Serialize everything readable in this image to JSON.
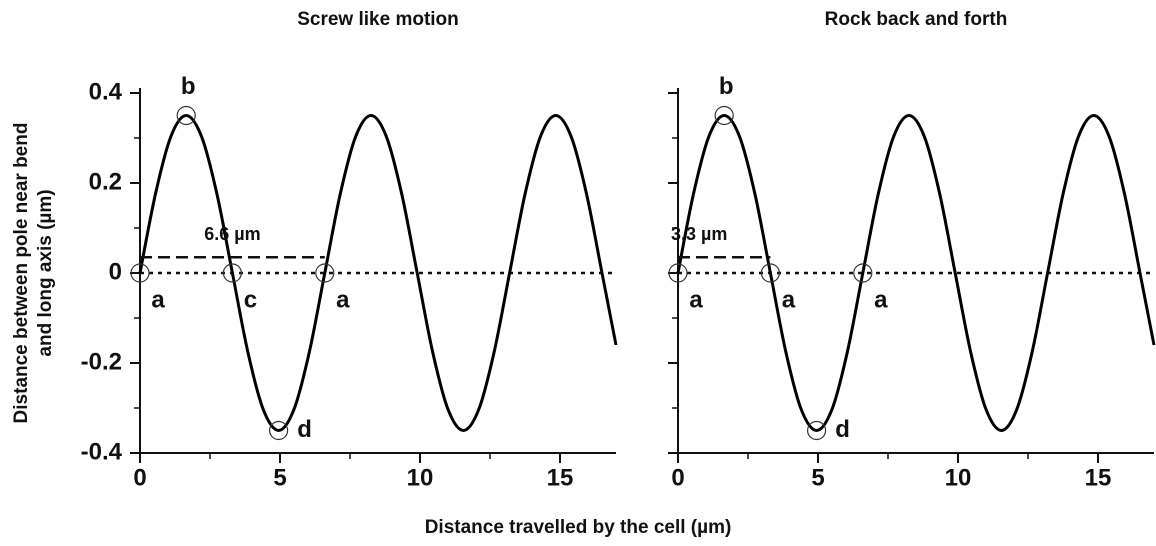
{
  "chart_data": [
    {
      "type": "line",
      "title": "Screw like motion",
      "ylabel": [
        "Distance between pole near bend",
        "and long axis (µm)"
      ],
      "xlabel": "Distance travelled by the cell (µm)",
      "x": [
        0,
        0.55,
        1.1,
        1.65,
        2.2,
        2.75,
        3.3,
        3.85,
        4.4,
        4.95,
        5.5,
        6.05,
        6.6,
        7.15,
        7.7,
        8.25,
        8.8,
        9.35,
        9.9,
        10.45,
        11,
        11.55,
        12.1,
        12.65,
        13.2,
        13.75,
        14.3,
        14.85,
        15.4,
        15.95,
        16.5,
        17
      ],
      "series": [
        {
          "color": "#000000",
          "values": [
            0,
            0.175,
            0.303,
            0.35,
            0.303,
            0.175,
            0,
            -0.175,
            -0.303,
            -0.35,
            -0.303,
            -0.175,
            0,
            0.175,
            0.303,
            0.35,
            0.303,
            0.175,
            0,
            -0.175,
            -0.303,
            -0.35,
            -0.303,
            -0.175,
            0,
            0.175,
            0.303,
            0.35,
            0.303,
            0.175,
            0,
            -0.16
          ]
        }
      ],
      "xlim": [
        0,
        17
      ],
      "ylim": [
        -0.4,
        0.4
      ],
      "xticks": [
        0,
        5,
        10,
        15
      ],
      "xminorticks": [
        2.5,
        7.5,
        12.5
      ],
      "yticks": [
        0.4,
        0.2,
        0,
        -0.2,
        -0.4
      ],
      "yminorticks": [
        0.3,
        0.1,
        -0.1,
        -0.3
      ],
      "ytick_labels": true,
      "hline": 0,
      "dashed": {
        "x": [
          0,
          6.6
        ],
        "y": 0.035,
        "label": "6.6 µm"
      },
      "annotations": [
        {
          "text": "a",
          "x": 0,
          "y": 0
        },
        {
          "text": "b",
          "x": 1.65,
          "y": 0.35
        },
        {
          "text": "c",
          "x": 3.3,
          "y": 0
        },
        {
          "text": "d",
          "x": 4.95,
          "y": -0.35
        },
        {
          "text": "a",
          "x": 6.6,
          "y": 0
        }
      ]
    },
    {
      "type": "line",
      "title": "Rock back and forth",
      "x": [
        0,
        0.55,
        1.1,
        1.65,
        2.2,
        2.75,
        3.3,
        3.85,
        4.4,
        4.95,
        5.5,
        6.05,
        6.6,
        7.15,
        7.7,
        8.25,
        8.8,
        9.35,
        9.9,
        10.45,
        11,
        11.55,
        12.1,
        12.65,
        13.2,
        13.75,
        14.3,
        14.85,
        15.4,
        15.95,
        16.5,
        17
      ],
      "series": [
        {
          "color": "#000000",
          "values": [
            0,
            0.175,
            0.303,
            0.35,
            0.303,
            0.175,
            0,
            -0.175,
            -0.303,
            -0.35,
            -0.303,
            -0.175,
            0,
            0.175,
            0.303,
            0.35,
            0.303,
            0.175,
            0,
            -0.175,
            -0.303,
            -0.35,
            -0.303,
            -0.175,
            0,
            0.175,
            0.303,
            0.35,
            0.303,
            0.175,
            0,
            -0.16
          ]
        }
      ],
      "xlim": [
        0,
        17
      ],
      "ylim": [
        -0.4,
        0.4
      ],
      "xticks": [
        0,
        5,
        10,
        15
      ],
      "xminorticks": [
        2.5,
        7.5,
        12.5
      ],
      "yticks": [
        0.4,
        0.2,
        0,
        -0.2,
        -0.4
      ],
      "yminorticks": [
        0.3,
        0.1,
        -0.1,
        -0.3
      ],
      "ytick_labels": false,
      "hline": 0,
      "dashed": {
        "x": [
          0,
          3.3
        ],
        "y": 0.035,
        "label": "3.3 µm"
      },
      "annotations": [
        {
          "text": "a",
          "x": 0,
          "y": 0
        },
        {
          "text": "b",
          "x": 1.65,
          "y": 0.35
        },
        {
          "text": "a",
          "x": 3.3,
          "y": 0
        },
        {
          "text": "d",
          "x": 4.95,
          "y": -0.35
        },
        {
          "text": "a",
          "x": 6.6,
          "y": 0
        }
      ]
    }
  ]
}
